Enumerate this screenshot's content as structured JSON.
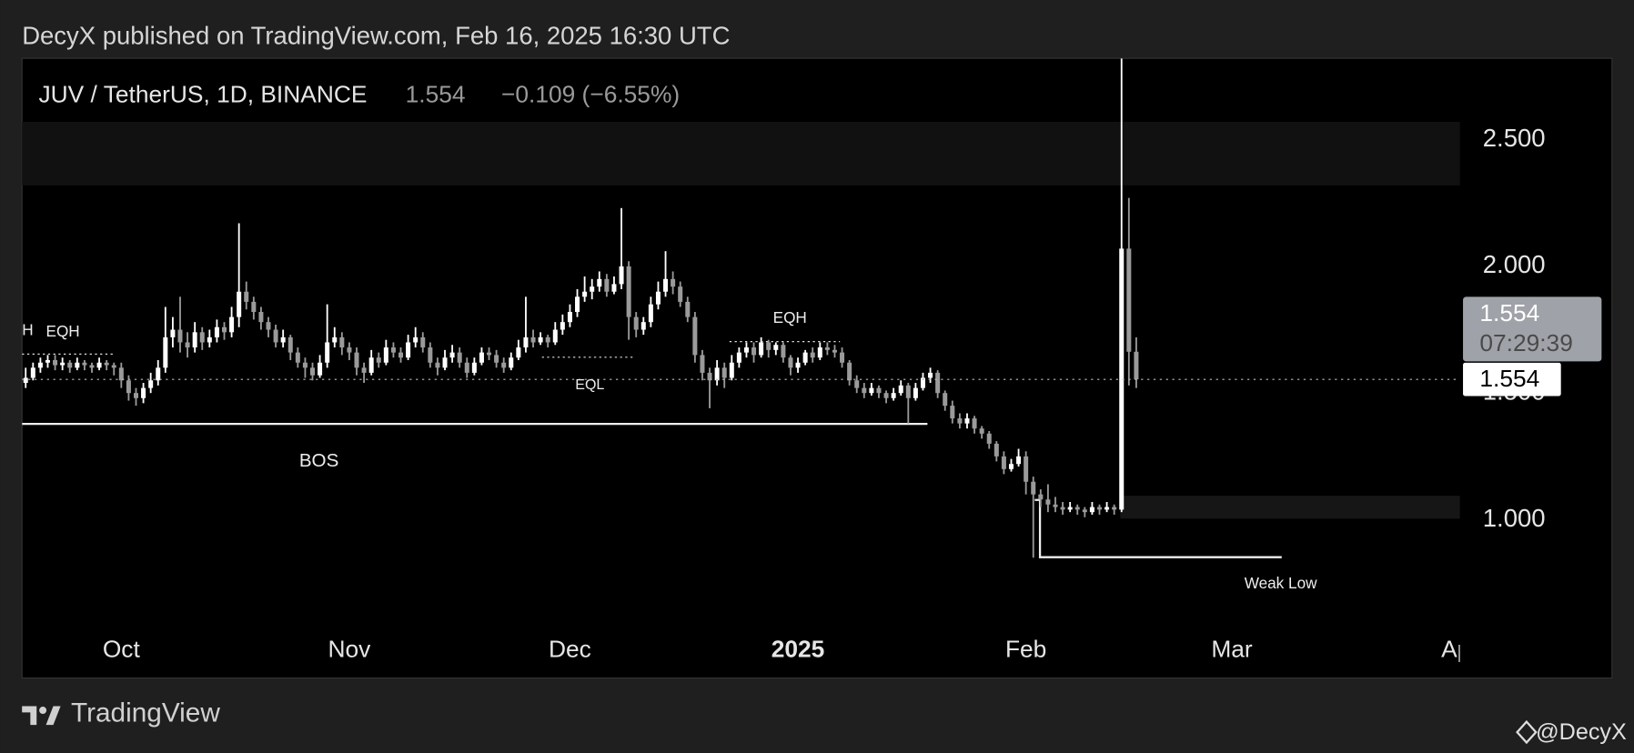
{
  "header": "DecyX published on TradingView.com, Feb 16, 2025 16:30 UTC",
  "chart_data": {
    "type": "candlestick",
    "symbol": "JUV / TetherUS, 1D, BINANCE",
    "last": "1.554",
    "change": "−0.109 (−6.55%)",
    "up_color": "#ffffff",
    "down_color": "#9a9a9a",
    "xlim": [
      -13.5,
      182
    ],
    "ylim": [
      0.585,
      2.821
    ],
    "xticks": [
      {
        "value": 0,
        "label": "Oct"
      },
      {
        "value": 31,
        "label": "Nov"
      },
      {
        "value": 61,
        "label": "Dec"
      },
      {
        "value": 92,
        "label": "2025"
      },
      {
        "value": 123,
        "label": "Feb"
      },
      {
        "value": 151,
        "label": "Mar"
      },
      {
        "value": 182,
        "label": "Apr"
      }
    ],
    "yticks": [
      {
        "value": 1,
        "label": "1.000"
      },
      {
        "value": 1.5,
        "label": "1.500"
      },
      {
        "value": 2,
        "label": "2.000"
      },
      {
        "value": 2.5,
        "label": "2.500"
      }
    ],
    "grid": false,
    "price_box": {
      "price": "1.554",
      "countdown": "07:29:39"
    },
    "last_price_label": "1.554",
    "annotations": [
      "H",
      "EQH",
      "EQL",
      "EQH",
      "BOS",
      "Weak Low"
    ],
    "candles": [
      [
        1.54,
        1.6,
        1.52,
        1.56
      ],
      [
        1.56,
        1.62,
        1.55,
        1.6
      ],
      [
        1.6,
        1.64,
        1.58,
        1.62
      ],
      [
        1.62,
        1.65,
        1.6,
        1.63
      ],
      [
        1.63,
        1.65,
        1.59,
        1.61
      ],
      [
        1.61,
        1.64,
        1.59,
        1.62
      ],
      [
        1.62,
        1.63,
        1.58,
        1.6
      ],
      [
        1.6,
        1.64,
        1.59,
        1.62
      ],
      [
        1.62,
        1.63,
        1.59,
        1.61
      ],
      [
        1.61,
        1.62,
        1.58,
        1.6
      ],
      [
        1.6,
        1.64,
        1.59,
        1.62
      ],
      [
        1.62,
        1.63,
        1.59,
        1.61
      ],
      [
        1.61,
        1.62,
        1.57,
        1.6
      ],
      [
        1.6,
        1.62,
        1.52,
        1.55
      ],
      [
        1.55,
        1.57,
        1.47,
        1.5
      ],
      [
        1.5,
        1.52,
        1.45,
        1.48
      ],
      [
        1.48,
        1.54,
        1.46,
        1.52
      ],
      [
        1.52,
        1.58,
        1.5,
        1.55
      ],
      [
        1.55,
        1.63,
        1.53,
        1.6
      ],
      [
        1.6,
        1.84,
        1.58,
        1.72
      ],
      [
        1.72,
        1.8,
        1.68,
        1.75
      ],
      [
        1.75,
        1.88,
        1.66,
        1.7
      ],
      [
        1.7,
        1.74,
        1.64,
        1.68
      ],
      [
        1.68,
        1.78,
        1.66,
        1.74
      ],
      [
        1.74,
        1.76,
        1.67,
        1.7
      ],
      [
        1.7,
        1.75,
        1.68,
        1.72
      ],
      [
        1.72,
        1.79,
        1.7,
        1.76
      ],
      [
        1.76,
        1.78,
        1.71,
        1.74
      ],
      [
        1.74,
        1.84,
        1.72,
        1.8
      ],
      [
        1.8,
        2.17,
        1.76,
        1.9
      ],
      [
        1.9,
        1.94,
        1.83,
        1.86
      ],
      [
        1.86,
        1.88,
        1.79,
        1.82
      ],
      [
        1.82,
        1.84,
        1.75,
        1.78
      ],
      [
        1.78,
        1.8,
        1.72,
        1.75
      ],
      [
        1.75,
        1.77,
        1.68,
        1.7
      ],
      [
        1.7,
        1.75,
        1.68,
        1.72
      ],
      [
        1.72,
        1.73,
        1.63,
        1.66
      ],
      [
        1.66,
        1.68,
        1.6,
        1.62
      ],
      [
        1.62,
        1.64,
        1.56,
        1.6
      ],
      [
        1.6,
        1.62,
        1.55,
        1.57
      ],
      [
        1.57,
        1.65,
        1.56,
        1.62
      ],
      [
        1.62,
        1.85,
        1.6,
        1.7
      ],
      [
        1.7,
        1.76,
        1.68,
        1.72
      ],
      [
        1.72,
        1.74,
        1.65,
        1.68
      ],
      [
        1.68,
        1.7,
        1.63,
        1.66
      ],
      [
        1.66,
        1.68,
        1.57,
        1.6
      ],
      [
        1.6,
        1.62,
        1.54,
        1.58
      ],
      [
        1.58,
        1.67,
        1.57,
        1.64
      ],
      [
        1.64,
        1.66,
        1.6,
        1.62
      ],
      [
        1.62,
        1.71,
        1.61,
        1.68
      ],
      [
        1.68,
        1.7,
        1.64,
        1.66
      ],
      [
        1.66,
        1.68,
        1.62,
        1.64
      ],
      [
        1.64,
        1.73,
        1.63,
        1.7
      ],
      [
        1.7,
        1.76,
        1.68,
        1.72
      ],
      [
        1.72,
        1.74,
        1.66,
        1.68
      ],
      [
        1.68,
        1.7,
        1.6,
        1.62
      ],
      [
        1.62,
        1.64,
        1.57,
        1.6
      ],
      [
        1.6,
        1.67,
        1.59,
        1.64
      ],
      [
        1.64,
        1.69,
        1.62,
        1.66
      ],
      [
        1.66,
        1.68,
        1.6,
        1.62
      ],
      [
        1.62,
        1.64,
        1.56,
        1.58
      ],
      [
        1.58,
        1.64,
        1.57,
        1.62
      ],
      [
        1.62,
        1.68,
        1.61,
        1.66
      ],
      [
        1.66,
        1.68,
        1.63,
        1.65
      ],
      [
        1.65,
        1.67,
        1.6,
        1.62
      ],
      [
        1.62,
        1.64,
        1.58,
        1.6
      ],
      [
        1.6,
        1.66,
        1.59,
        1.64
      ],
      [
        1.64,
        1.71,
        1.63,
        1.68
      ],
      [
        1.68,
        1.88,
        1.66,
        1.72
      ],
      [
        1.72,
        1.75,
        1.68,
        1.7
      ],
      [
        1.7,
        1.74,
        1.69,
        1.72
      ],
      [
        1.72,
        1.73,
        1.68,
        1.7
      ],
      [
        1.7,
        1.78,
        1.69,
        1.75
      ],
      [
        1.75,
        1.81,
        1.73,
        1.78
      ],
      [
        1.78,
        1.85,
        1.76,
        1.82
      ],
      [
        1.82,
        1.91,
        1.8,
        1.88
      ],
      [
        1.88,
        1.96,
        1.86,
        1.9
      ],
      [
        1.9,
        1.95,
        1.87,
        1.92
      ],
      [
        1.92,
        1.98,
        1.9,
        1.95
      ],
      [
        1.95,
        1.97,
        1.88,
        1.9
      ],
      [
        1.9,
        1.96,
        1.89,
        1.93
      ],
      [
        1.93,
        2.23,
        1.91,
        2.0
      ],
      [
        2.0,
        2.02,
        1.71,
        1.8
      ],
      [
        1.8,
        1.82,
        1.72,
        1.75
      ],
      [
        1.75,
        1.8,
        1.73,
        1.78
      ],
      [
        1.78,
        1.88,
        1.76,
        1.85
      ],
      [
        1.85,
        1.94,
        1.83,
        1.9
      ],
      [
        1.9,
        2.06,
        1.88,
        1.95
      ],
      [
        1.95,
        1.98,
        1.89,
        1.92
      ],
      [
        1.92,
        1.94,
        1.84,
        1.86
      ],
      [
        1.86,
        1.88,
        1.78,
        1.8
      ],
      [
        1.8,
        1.82,
        1.62,
        1.65
      ],
      [
        1.65,
        1.67,
        1.55,
        1.58
      ],
      [
        1.58,
        1.6,
        1.44,
        1.55
      ],
      [
        1.55,
        1.63,
        1.53,
        1.6
      ],
      [
        1.6,
        1.62,
        1.52,
        1.56
      ],
      [
        1.56,
        1.65,
        1.55,
        1.62
      ],
      [
        1.62,
        1.68,
        1.6,
        1.66
      ],
      [
        1.66,
        1.7,
        1.64,
        1.68
      ],
      [
        1.68,
        1.7,
        1.62,
        1.65
      ],
      [
        1.65,
        1.72,
        1.64,
        1.7
      ],
      [
        1.7,
        1.71,
        1.64,
        1.67
      ],
      [
        1.67,
        1.7,
        1.65,
        1.69
      ],
      [
        1.69,
        1.7,
        1.62,
        1.64
      ],
      [
        1.64,
        1.65,
        1.57,
        1.6
      ],
      [
        1.6,
        1.64,
        1.58,
        1.62
      ],
      [
        1.62,
        1.67,
        1.61,
        1.66
      ],
      [
        1.66,
        1.68,
        1.62,
        1.64
      ],
      [
        1.64,
        1.7,
        1.63,
        1.68
      ],
      [
        1.68,
        1.7,
        1.65,
        1.67
      ],
      [
        1.67,
        1.69,
        1.64,
        1.66
      ],
      [
        1.66,
        1.68,
        1.6,
        1.62
      ],
      [
        1.62,
        1.63,
        1.53,
        1.55
      ],
      [
        1.55,
        1.57,
        1.5,
        1.52
      ],
      [
        1.52,
        1.54,
        1.48,
        1.5
      ],
      [
        1.5,
        1.54,
        1.49,
        1.52
      ],
      [
        1.52,
        1.53,
        1.48,
        1.5
      ],
      [
        1.5,
        1.51,
        1.46,
        1.48
      ],
      [
        1.48,
        1.52,
        1.47,
        1.5
      ],
      [
        1.5,
        1.55,
        1.49,
        1.53
      ],
      [
        1.53,
        1.54,
        1.38,
        1.48
      ],
      [
        1.48,
        1.54,
        1.47,
        1.52
      ],
      [
        1.52,
        1.58,
        1.51,
        1.56
      ],
      [
        1.56,
        1.6,
        1.54,
        1.58
      ],
      [
        1.58,
        1.59,
        1.48,
        1.5
      ],
      [
        1.5,
        1.51,
        1.43,
        1.45
      ],
      [
        1.45,
        1.47,
        1.38,
        1.4
      ],
      [
        1.4,
        1.42,
        1.36,
        1.38
      ],
      [
        1.38,
        1.42,
        1.36,
        1.4
      ],
      [
        1.4,
        1.41,
        1.34,
        1.36
      ],
      [
        1.36,
        1.37,
        1.32,
        1.34
      ],
      [
        1.34,
        1.35,
        1.28,
        1.3
      ],
      [
        1.3,
        1.31,
        1.23,
        1.25
      ],
      [
        1.25,
        1.27,
        1.18,
        1.2
      ],
      [
        1.2,
        1.24,
        1.19,
        1.22
      ],
      [
        1.22,
        1.28,
        1.21,
        1.25
      ],
      [
        1.25,
        1.27,
        1.1,
        1.15
      ],
      [
        1.15,
        1.17,
        0.85,
        1.1
      ],
      [
        1.1,
        1.12,
        1.05,
        1.08
      ],
      [
        1.08,
        1.14,
        1.03,
        1.06
      ],
      [
        1.06,
        1.09,
        1.03,
        1.05
      ],
      [
        1.05,
        1.07,
        1.02,
        1.04
      ],
      [
        1.04,
        1.07,
        1.03,
        1.05
      ],
      [
        1.05,
        1.06,
        1.02,
        1.04
      ],
      [
        1.04,
        1.05,
        1.01,
        1.03
      ],
      [
        1.03,
        1.07,
        1.02,
        1.05
      ],
      [
        1.05,
        1.06,
        1.02,
        1.04
      ],
      [
        1.04,
        1.07,
        1.03,
        1.05
      ],
      [
        1.05,
        1.06,
        1.02,
        1.04
      ],
      [
        1.04,
        2.82,
        1.03,
        2.07
      ],
      [
        2.07,
        2.27,
        1.53,
        1.663
      ],
      [
        1.663,
        1.72,
        1.52,
        1.554
      ]
    ]
  },
  "footer": {
    "brand": "TradingView",
    "author": "@DecyX"
  }
}
